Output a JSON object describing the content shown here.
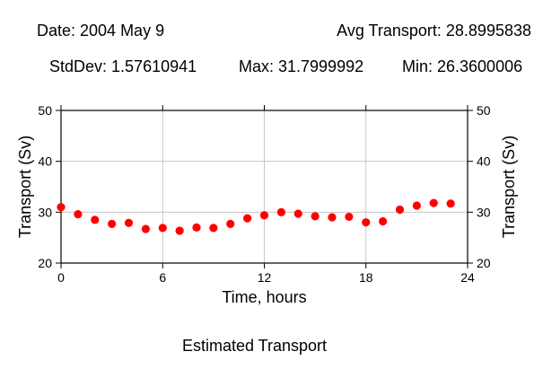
{
  "header": {
    "date": "Date: 2004 May 9",
    "avg": "Avg Transport: 28.8995838",
    "stddev": "StdDev: 1.57610941",
    "max": "Max: 31.7999992",
    "min": "Min: 26.3600006"
  },
  "caption": "Estimated Transport",
  "chart_data": {
    "type": "scatter",
    "title": "",
    "xlabel": "Time, hours",
    "ylabel": "Transport (Sv)",
    "ylabel_right": "Transport (Sv)",
    "xlim": [
      0,
      24
    ],
    "ylim": [
      20,
      50
    ],
    "xticks": [
      0,
      6,
      12,
      18,
      24
    ],
    "yticks": [
      20,
      30,
      40,
      50
    ],
    "grid": true,
    "marker_color": "#ff0000",
    "series": [
      {
        "x": [
          0,
          1,
          2,
          3,
          4,
          5,
          6,
          7,
          8,
          9,
          10,
          11,
          12,
          13,
          14,
          15,
          16,
          17,
          18,
          19,
          20,
          21,
          22,
          23
        ],
        "values": [
          31.0,
          29.6,
          28.5,
          27.7,
          27.9,
          26.7,
          26.9,
          26.36,
          27.0,
          26.9,
          27.7,
          28.8,
          29.4,
          30.0,
          29.7,
          29.2,
          29.0,
          29.1,
          28.0,
          28.2,
          30.5,
          31.3,
          31.8,
          31.7
        ]
      }
    ]
  }
}
